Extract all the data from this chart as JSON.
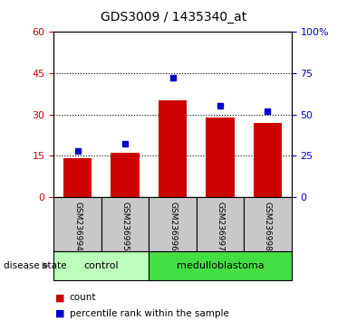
{
  "title": "GDS3009 / 1435340_at",
  "samples": [
    "GSM236994",
    "GSM236995",
    "GSM236996",
    "GSM236997",
    "GSM236998"
  ],
  "counts": [
    14,
    16,
    35,
    29,
    27
  ],
  "percentiles": [
    28,
    32,
    72,
    55,
    52
  ],
  "left_ylim": [
    0,
    60
  ],
  "right_ylim": [
    0,
    100
  ],
  "left_yticks": [
    0,
    15,
    30,
    45,
    60
  ],
  "right_yticks": [
    0,
    25,
    50,
    75,
    100
  ],
  "bar_color": "#cc0000",
  "dot_color": "#0000cc",
  "groups": [
    {
      "label": "control",
      "indices": [
        0,
        1
      ],
      "color": "#bbffbb"
    },
    {
      "label": "medulloblastoma",
      "indices": [
        2,
        3,
        4
      ],
      "color": "#44dd44"
    }
  ],
  "group_label_prefix": "disease state",
  "legend_items": [
    {
      "label": "count",
      "color": "#cc0000"
    },
    {
      "label": "percentile rank within the sample",
      "color": "#0000cc"
    }
  ],
  "tick_bg_color": "#c8c8c8",
  "grid_dotted_vals": [
    15,
    30,
    45
  ],
  "bar_width": 0.6
}
